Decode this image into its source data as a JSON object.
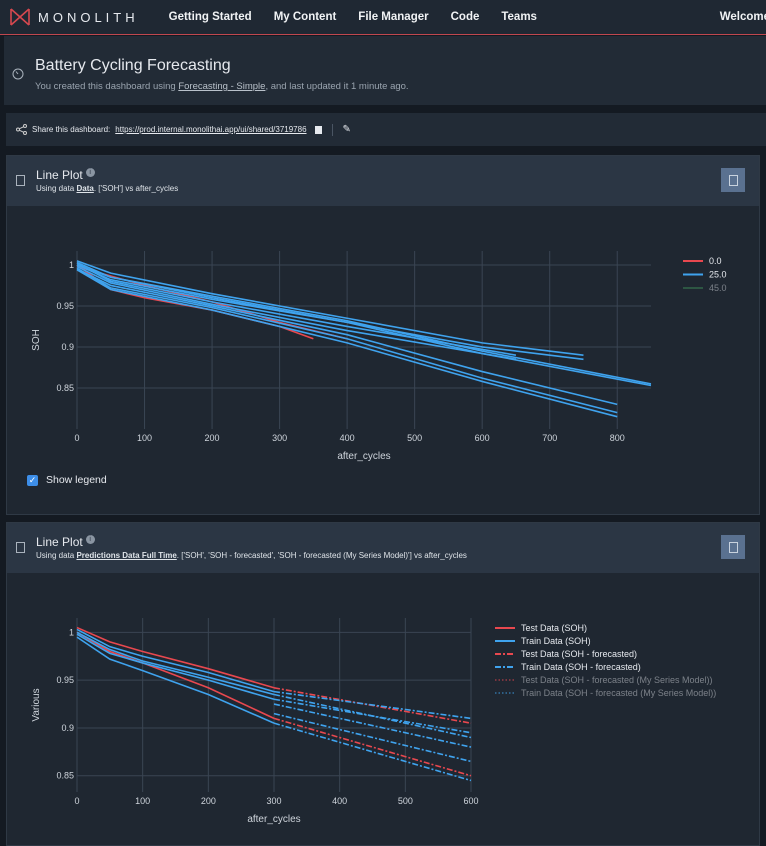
{
  "nav": {
    "brand": "MONOLITH",
    "items": [
      "Getting Started",
      "My Content",
      "File Manager",
      "Code",
      "Teams"
    ],
    "welcome": "Welcome"
  },
  "dashboard": {
    "title": "Battery Cycling Forecasting",
    "subtitle_pre": "You created this dashboard using ",
    "template_link": "Forecasting - Simple",
    "subtitle_post": ", and last updated it 1 minute ago."
  },
  "share": {
    "label": "Share this dashboard:",
    "url": "https://prod.internal.monolithai.app/ui/shared/3719786"
  },
  "panels": [
    {
      "title": "Line Plot",
      "sub_pre": "Using data ",
      "dataset": "Data",
      "sub_post": ". ['SOH'] vs after_cycles",
      "show_legend": "Show legend"
    },
    {
      "title": "Line Plot",
      "sub_pre": "Using data ",
      "dataset": "Predictions Data Full Time",
      "sub_post": ". ['SOH', 'SOH - forecasted', 'SOH - forecasted (My Series Model)'] vs after_cycles"
    }
  ],
  "chart_data": [
    {
      "type": "line",
      "xlabel": "after_cycles",
      "ylabel": "SOH",
      "xlim": [
        0,
        850
      ],
      "ylim": [
        0.8,
        1.017
      ],
      "xticks": [
        0,
        100,
        200,
        300,
        400,
        500,
        600,
        700,
        800
      ],
      "yticks": [
        0.85,
        0.9,
        0.95,
        1
      ],
      "grid": true,
      "legend": "top-right",
      "legend_entries": [
        {
          "name": "0.0",
          "color": "#e8484f",
          "visible": true
        },
        {
          "name": "25.0",
          "color": "#3fa3ee",
          "visible": true
        },
        {
          "name": "45.0",
          "color": "#3f8f5a",
          "visible": false
        }
      ],
      "series": [
        {
          "group": "0.0",
          "points": [
            [
              0,
              1.0
            ],
            [
              50,
              0.97
            ],
            [
              100,
              0.96
            ],
            [
              200,
              0.945
            ],
            [
              300,
              0.925
            ],
            [
              350,
              0.91
            ]
          ]
        },
        {
          "group": "0.0",
          "points": [
            [
              0,
              0.998
            ],
            [
              100,
              0.975
            ],
            [
              200,
              0.955
            ],
            [
              300,
              0.93
            ],
            [
              400,
              0.91
            ]
          ]
        },
        {
          "group": "25.0",
          "points": [
            [
              0,
              1.005
            ],
            [
              50,
              0.99
            ],
            [
              200,
              0.965
            ],
            [
              400,
              0.935
            ],
            [
              600,
              0.905
            ],
            [
              750,
              0.89
            ]
          ]
        },
        {
          "group": "25.0",
          "points": [
            [
              0,
              1.0
            ],
            [
              50,
              0.985
            ],
            [
              200,
              0.96
            ],
            [
              400,
              0.93
            ],
            [
              600,
              0.9
            ],
            [
              750,
              0.885
            ]
          ]
        },
        {
          "group": "25.0",
          "points": [
            [
              0,
              1.002
            ],
            [
              50,
              0.98
            ],
            [
              200,
              0.955
            ],
            [
              400,
              0.925
            ],
            [
              650,
              0.89
            ]
          ]
        },
        {
          "group": "25.0",
          "points": [
            [
              0,
              0.998
            ],
            [
              50,
              0.978
            ],
            [
              200,
              0.952
            ],
            [
              400,
              0.92
            ],
            [
              650,
              0.885
            ]
          ]
        },
        {
          "group": "25.0",
          "points": [
            [
              0,
              1.0
            ],
            [
              50,
              0.982
            ],
            [
              200,
              0.958
            ],
            [
              400,
              0.93
            ],
            [
              600,
              0.892
            ],
            [
              850,
              0.853
            ]
          ]
        },
        {
          "group": "25.0",
          "points": [
            [
              0,
              1.003
            ],
            [
              50,
              0.985
            ],
            [
              200,
              0.962
            ],
            [
              400,
              0.932
            ],
            [
              600,
              0.895
            ],
            [
              850,
              0.855
            ]
          ]
        },
        {
          "group": "25.0",
          "points": [
            [
              0,
              0.995
            ],
            [
              50,
              0.975
            ],
            [
              200,
              0.95
            ],
            [
              400,
              0.915
            ],
            [
              600,
              0.87
            ],
            [
              800,
              0.83
            ]
          ]
        },
        {
          "group": "25.0",
          "points": [
            [
              0,
              0.996
            ],
            [
              50,
              0.972
            ],
            [
              200,
              0.948
            ],
            [
              400,
              0.91
            ],
            [
              600,
              0.862
            ],
            [
              800,
              0.82
            ]
          ]
        },
        {
          "group": "25.0",
          "points": [
            [
              0,
              0.994
            ],
            [
              50,
              0.97
            ],
            [
              200,
              0.945
            ],
            [
              400,
              0.905
            ],
            [
              600,
              0.858
            ],
            [
              800,
              0.815
            ]
          ]
        }
      ]
    },
    {
      "type": "line",
      "xlabel": "after_cycles",
      "ylabel": "Various",
      "xlim": [
        0,
        600
      ],
      "ylim": [
        0.833,
        1.015
      ],
      "xticks": [
        0,
        100,
        200,
        300,
        400,
        500,
        600
      ],
      "yticks": [
        0.85,
        0.9,
        0.95,
        1
      ],
      "grid": true,
      "legend": "right",
      "legend_entries": [
        {
          "name": "Test Data (SOH)",
          "color": "#e8484f",
          "dash": "solid",
          "visible": true
        },
        {
          "name": "Train Data (SOH)",
          "color": "#3fa3ee",
          "dash": "solid",
          "visible": true
        },
        {
          "name": "Test Data (SOH - forecasted)",
          "color": "#e8484f",
          "dash": "dashdot",
          "visible": true
        },
        {
          "name": "Train Data (SOH - forecasted)",
          "color": "#3fa3ee",
          "dash": "dashdot",
          "visible": true
        },
        {
          "name": "Test Data (SOH - forecasted (My Series Model))",
          "color": "#e8484f",
          "dash": "dot",
          "visible": false
        },
        {
          "name": "Train Data (SOH - forecasted (My Series Model))",
          "color": "#3fa3ee",
          "dash": "dot",
          "visible": false
        }
      ],
      "series": [
        {
          "entry": 0,
          "points": [
            [
              0,
              1.005
            ],
            [
              50,
              0.99
            ],
            [
              100,
              0.98
            ],
            [
              200,
              0.962
            ],
            [
              300,
              0.942
            ]
          ]
        },
        {
          "entry": 0,
          "points": [
            [
              0,
              1.0
            ],
            [
              50,
              0.98
            ],
            [
              100,
              0.968
            ],
            [
              200,
              0.942
            ],
            [
              300,
              0.91
            ]
          ]
        },
        {
          "entry": 1,
          "points": [
            [
              0,
              1.003
            ],
            [
              50,
              0.985
            ],
            [
              100,
              0.975
            ],
            [
              200,
              0.958
            ],
            [
              300,
              0.938
            ]
          ]
        },
        {
          "entry": 1,
          "points": [
            [
              0,
              0.998
            ],
            [
              50,
              0.978
            ],
            [
              100,
              0.968
            ],
            [
              200,
              0.95
            ],
            [
              300,
              0.93
            ]
          ]
        },
        {
          "entry": 1,
          "points": [
            [
              0,
              0.995
            ],
            [
              50,
              0.972
            ],
            [
              100,
              0.96
            ],
            [
              200,
              0.935
            ],
            [
              300,
              0.905
            ]
          ]
        },
        {
          "entry": 1,
          "points": [
            [
              0,
              1.0
            ],
            [
              50,
              0.982
            ],
            [
              100,
              0.97
            ],
            [
              200,
              0.953
            ],
            [
              300,
              0.935
            ]
          ]
        },
        {
          "entry": 2,
          "points": [
            [
              300,
              0.942
            ],
            [
              600,
              0.905
            ]
          ]
        },
        {
          "entry": 2,
          "points": [
            [
              300,
              0.91
            ],
            [
              600,
              0.85
            ]
          ]
        },
        {
          "entry": 3,
          "points": [
            [
              300,
              0.938
            ],
            [
              600,
              0.91
            ]
          ]
        },
        {
          "entry": 3,
          "points": [
            [
              300,
              0.93
            ],
            [
              600,
              0.895
            ]
          ]
        },
        {
          "entry": 3,
          "points": [
            [
              300,
              0.905
            ],
            [
              600,
              0.845
            ]
          ]
        },
        {
          "entry": 3,
          "points": [
            [
              300,
              0.935
            ],
            [
              600,
              0.89
            ]
          ]
        },
        {
          "entry": 3,
          "points": [
            [
              300,
              0.925
            ],
            [
              600,
              0.88
            ]
          ]
        },
        {
          "entry": 3,
          "points": [
            [
              300,
              0.915
            ],
            [
              600,
              0.865
            ]
          ]
        }
      ]
    }
  ],
  "colors": {
    "accent": "#c0474f",
    "checkbox": "#3d8ee8"
  }
}
